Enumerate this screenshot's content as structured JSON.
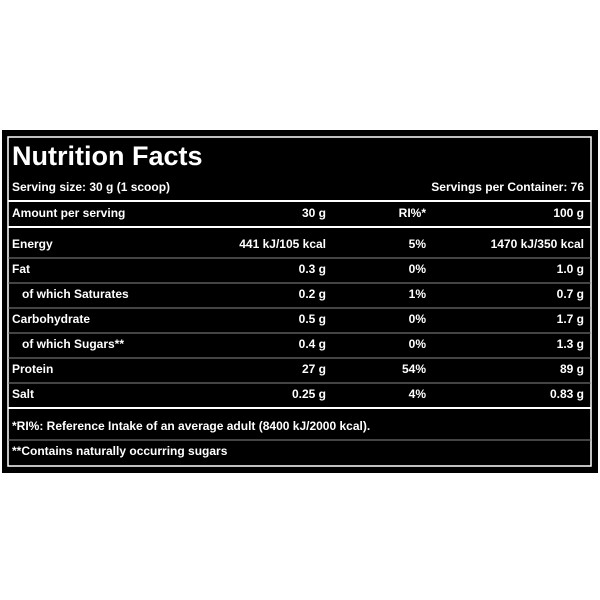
{
  "title": "Nutrition Facts",
  "serving": {
    "size": "Serving size: 30 g (1 scoop)",
    "per_container": "Servings per Container: 76"
  },
  "table": {
    "header": [
      "Amount per serving",
      "30 g",
      "RI%*",
      "100 g"
    ],
    "rows": [
      [
        "Energy",
        "441 kJ/105 kcal",
        "5%",
        "1470 kJ/350 kcal"
      ],
      [
        "Fat",
        "0.3 g",
        "0%",
        "1.0 g"
      ],
      [
        "of which Saturates",
        "0.2 g",
        "1%",
        "0.7 g"
      ],
      [
        "Carbohydrate",
        "0.5 g",
        "0%",
        "1.7 g"
      ],
      [
        "of which Sugars**",
        "0.4 g",
        "0%",
        "1.3 g"
      ],
      [
        "Protein",
        "27 g",
        "54%",
        "89 g"
      ],
      [
        "Salt",
        "0.25 g",
        "4%",
        "0.83 g"
      ]
    ]
  },
  "footnotes": [
    "*RI%: Reference Intake of an average adult (8400 kJ/2000 kcal).",
    "**Contains naturally occurring sugars"
  ]
}
